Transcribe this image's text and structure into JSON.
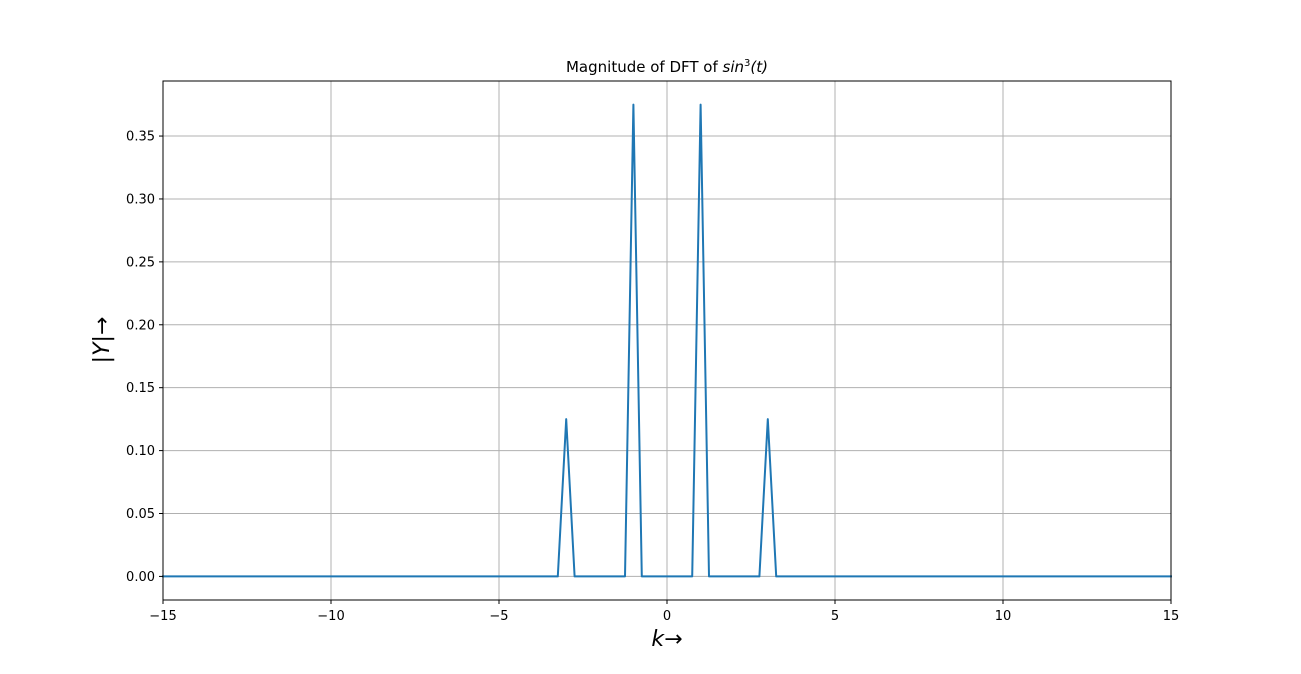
{
  "chart_data": {
    "type": "line",
    "title_prefix": "Magnitude of DFT of ",
    "title_math_base": "sin",
    "title_math_sup": "3",
    "title_math_arg": "(t)",
    "xlabel": "k→",
    "ylabel": "|Y|→",
    "xlim": [
      -15,
      15
    ],
    "ylim": [
      -0.01875,
      0.39375
    ],
    "x_ticks": [
      -15,
      -10,
      -5,
      0,
      5,
      10,
      15
    ],
    "x_tick_labels": [
      "−15",
      "−10",
      "−5",
      "0",
      "5",
      "10",
      "15"
    ],
    "y_ticks": [
      0.0,
      0.05,
      0.1,
      0.15,
      0.2,
      0.25,
      0.3,
      0.35
    ],
    "y_tick_labels": [
      "0.00",
      "0.05",
      "0.10",
      "0.15",
      "0.20",
      "0.25",
      "0.30",
      "0.35"
    ],
    "grid": true,
    "series": [
      {
        "color": "#1f77b4",
        "x": [
          -15,
          -3.25,
          -3.0,
          -2.75,
          -1.25,
          -1.0,
          -0.75,
          0.75,
          1.0,
          1.25,
          2.75,
          3.0,
          3.25,
          15
        ],
        "y": [
          0.0,
          0.0,
          0.125,
          0.0,
          0.0,
          0.375,
          0.0,
          0.0,
          0.375,
          0.0,
          0.0,
          0.125,
          0.0,
          0.0
        ]
      }
    ]
  }
}
